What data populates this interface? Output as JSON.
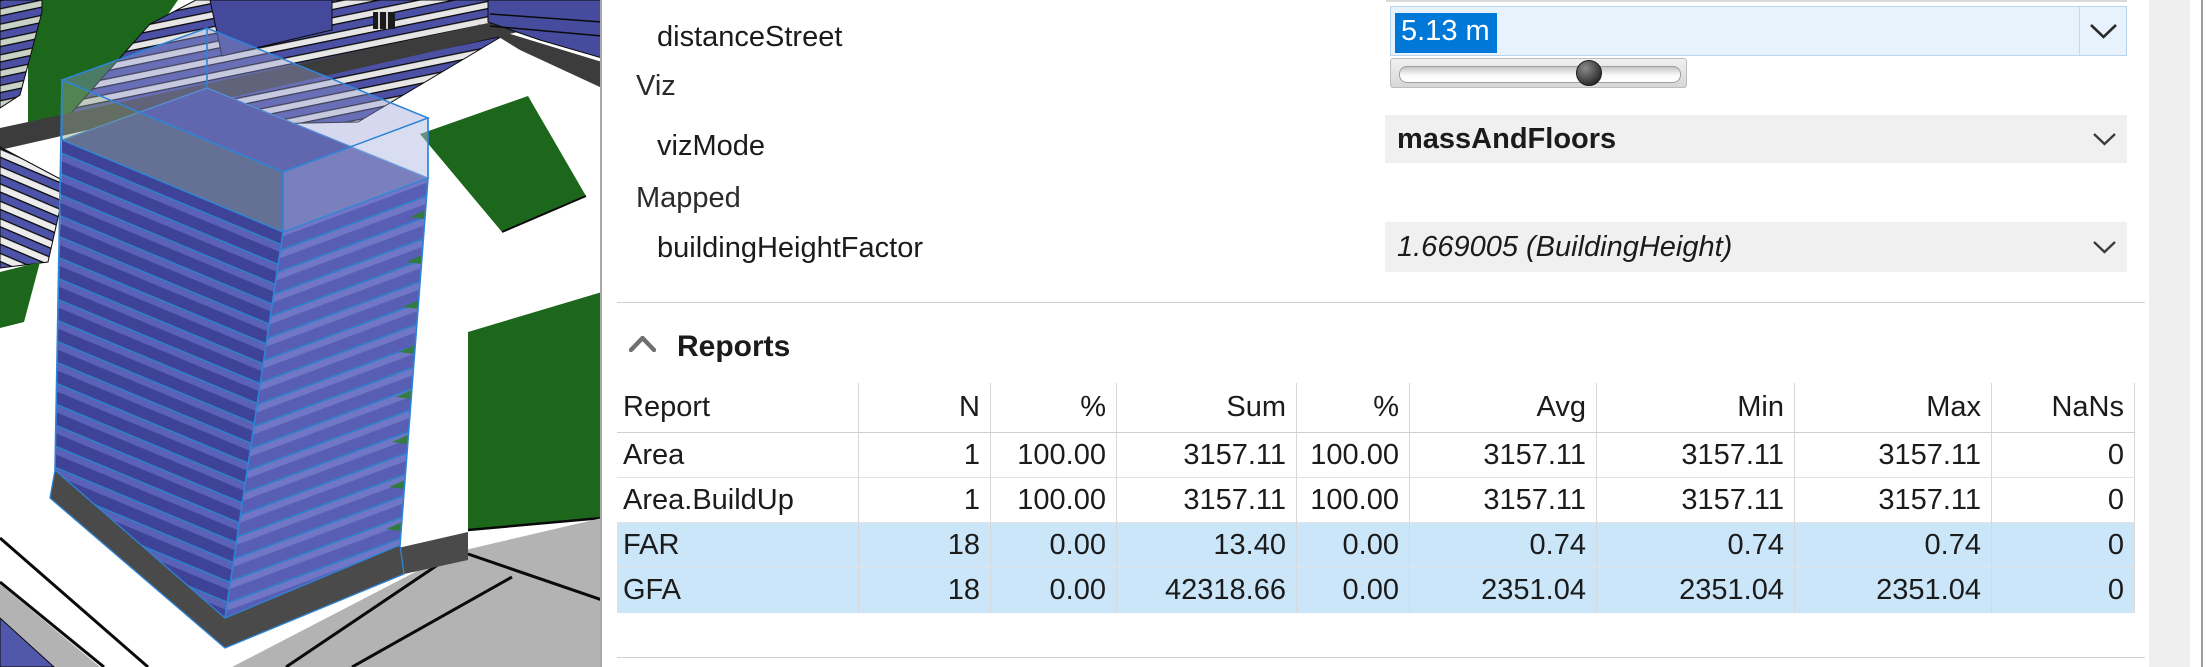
{
  "attributes": {
    "distanceStreet": {
      "label": "distanceStreet",
      "value": "5.13 m"
    },
    "vizGroup": {
      "label": "Viz"
    },
    "vizMode": {
      "label": "vizMode",
      "value": "massAndFloors"
    },
    "mappedGroup": {
      "label": "Mapped"
    },
    "buildingHeightFactor": {
      "label": "buildingHeightFactor",
      "value": "1.669005 (BuildingHeight)"
    }
  },
  "slider": {
    "fraction": 0.67
  },
  "reports": {
    "title": "Reports",
    "table": {
      "columns": [
        "Report",
        "N",
        "%",
        "Sum",
        "%",
        "Avg",
        "Min",
        "Max",
        "NaNs"
      ],
      "rows": [
        {
          "cells": [
            "Area",
            "1",
            "100.00",
            "3157.11",
            "100.00",
            "3157.11",
            "3157.11",
            "3157.11",
            "0"
          ],
          "highlighted": false
        },
        {
          "cells": [
            "Area.BuildUp",
            "1",
            "100.00",
            "3157.11",
            "100.00",
            "3157.11",
            "3157.11",
            "3157.11",
            "0"
          ],
          "highlighted": false
        },
        {
          "cells": [
            "FAR",
            "18",
            "0.00",
            "13.40",
            "0.00",
            "0.74",
            "0.74",
            "0.74",
            "0"
          ],
          "highlighted": true
        },
        {
          "cells": [
            "GFA",
            "18",
            "0.00",
            "42318.66",
            "0.00",
            "2351.04",
            "2351.04",
            "2351.04",
            "0"
          ],
          "highlighted": true
        }
      ]
    }
  },
  "icons": {
    "field_dropdown": "chevron-down-icon",
    "reports_toggle": "chevron-up-icon"
  },
  "colors": {
    "selection_blue": "#0078d7",
    "field_highlight_bg": "#e7f2fc",
    "field_gray_bg": "#f0f0f0",
    "row_highlight": "#cbe6f9",
    "selected_edge_blue": "#2e84d6",
    "building_purple": "#454a9c",
    "parcel_green": "#1d671d",
    "road_gray": "#b3b3b3"
  }
}
